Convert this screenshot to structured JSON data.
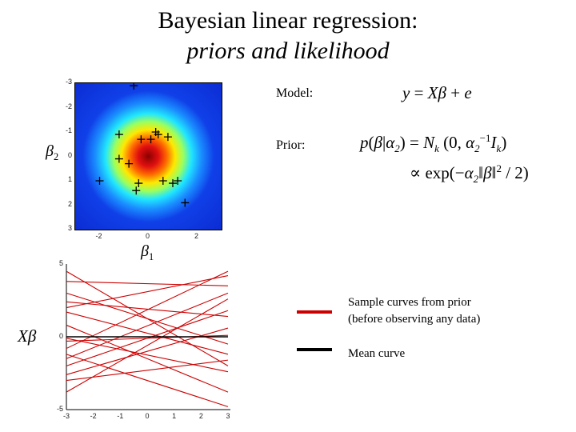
{
  "title": {
    "line1": "Bayesian linear regression:",
    "line2": "priors and likelihood"
  },
  "equations": {
    "model_label": "Model:",
    "model_formula": "y = Xβ + e",
    "prior_label": "Prior:",
    "prior_formula_1": "p(β|α2) = Nk(0, α2−1 Ik)",
    "prior_formula_2": "∝ exp(−α2‖β‖2 / 2)"
  },
  "prior_plot": {
    "xlabel": "β1",
    "ylabel": "β2",
    "xticks": [
      "-2",
      "0",
      "2"
    ],
    "yticks": [
      "-3",
      "-2",
      "-1",
      "0",
      "1",
      "2",
      "3"
    ],
    "tick_values_x": [
      -2,
      0,
      2
    ],
    "tick_values_y": [
      -3,
      -2,
      -1,
      0,
      1,
      2,
      3
    ],
    "range": [
      -3,
      3
    ],
    "density": "gaussian centered at origin",
    "samples": [
      {
        "b1": -0.6,
        "b2": -2.9
      },
      {
        "b1": -1.2,
        "b2": -0.9
      },
      {
        "b1": 0.3,
        "b2": -1.0
      },
      {
        "b1": 0.4,
        "b2": -0.9
      },
      {
        "b1": 0.8,
        "b2": -0.8
      },
      {
        "b1": -0.3,
        "b2": -0.7
      },
      {
        "b1": 0.1,
        "b2": -0.7
      },
      {
        "b1": -1.2,
        "b2": 0.1
      },
      {
        "b1": -0.8,
        "b2": 0.3
      },
      {
        "b1": -2.0,
        "b2": 1.0
      },
      {
        "b1": -0.4,
        "b2": 1.1
      },
      {
        "b1": -0.5,
        "b2": 1.4
      },
      {
        "b1": 0.6,
        "b2": 1.0
      },
      {
        "b1": 1.0,
        "b2": 1.1
      },
      {
        "b1": 1.2,
        "b2": 1.0
      },
      {
        "b1": 1.5,
        "b2": 1.9
      }
    ]
  },
  "curves_plot": {
    "ylabel": "Xβ",
    "xticks": [
      "-3",
      "-2",
      "-1",
      "0",
      "1",
      "2",
      "3"
    ],
    "yticks": [
      "5",
      "0",
      "-5"
    ],
    "xlim": [
      -3,
      3
    ],
    "ylim": [
      -5,
      5
    ],
    "sample_curves": [
      {
        "y_at_-3": 4.5,
        "y_at_3": -2.0
      },
      {
        "y_at_-3": 3.8,
        "y_at_3": 3.5
      },
      {
        "y_at_-3": 2.0,
        "y_at_3": 4.2
      },
      {
        "y_at_-3": -0.8,
        "y_at_3": 4.5
      },
      {
        "y_at_-3": -1.5,
        "y_at_3": 3.0
      },
      {
        "y_at_-3": -2.0,
        "y_at_3": 1.8
      },
      {
        "y_at_-3": -2.6,
        "y_at_3": 0.6
      },
      {
        "y_at_-3": -3.8,
        "y_at_3": 2.6
      },
      {
        "y_at_-3": 1.7,
        "y_at_3": -1.2
      },
      {
        "y_at_-3": 3.0,
        "y_at_3": -0.5
      },
      {
        "y_at_-3": -0.3,
        "y_at_3": 0.1
      },
      {
        "y_at_-3": 0.8,
        "y_at_3": -3.8
      },
      {
        "y_at_-3": -1.2,
        "y_at_3": -4.8
      },
      {
        "y_at_-3": -0.1,
        "y_at_3": -2.4
      },
      {
        "y_at_-3": 2.4,
        "y_at_3": 1.4
      },
      {
        "y_at_-3": -3.0,
        "y_at_3": -1.6
      }
    ],
    "mean_curve": {
      "y_at_-3": 0,
      "y_at_3": 0
    }
  },
  "legend": {
    "sample_label_line1": "Sample curves from prior",
    "sample_label_line2": "(before observing any data)",
    "mean_label": "Mean curve",
    "sample_color": "#cc0000",
    "mean_color": "#000000"
  }
}
